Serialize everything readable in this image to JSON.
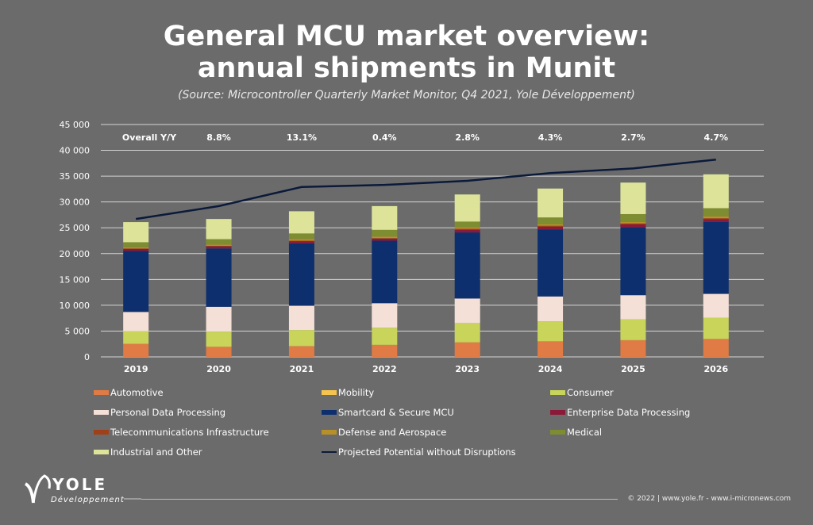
{
  "title_line1": "General MCU market overview:",
  "title_line2": "annual shipments in Munit",
  "subtitle": "(Source: Microcontroller Quarterly Market Monitor, Q4 2021, Yole Développement)",
  "footer": "© 2022 | www.yole.fr - www.i-micronews.com",
  "logo": {
    "name": "YOLE",
    "sub": "Développement"
  },
  "chart_data": {
    "type": "bar",
    "stacked": true,
    "title": "General MCU market overview: annual shipments in Munit",
    "xlabel": "",
    "ylabel": "",
    "ylim": [
      0,
      45000
    ],
    "yticks": [
      0,
      5000,
      10000,
      15000,
      20000,
      25000,
      30000,
      35000,
      40000,
      45000
    ],
    "ytick_labels": [
      "0",
      "5 000",
      "10 000",
      "15 000",
      "20 000",
      "25 000",
      "30 000",
      "35 000",
      "40 000",
      "45 000"
    ],
    "grid": true,
    "legend_position": "bottom",
    "categories": [
      "2019",
      "2020",
      "2021",
      "2022",
      "2023",
      "2024",
      "2025",
      "2026"
    ],
    "yoy_label": "Overall Y/Y",
    "yoy": [
      "8.8%",
      "13.1%",
      "0.4%",
      "2.8%",
      "4.3%",
      "2.7%",
      "4.7%"
    ],
    "series": [
      {
        "name": "Automotive",
        "color": "#E07B45",
        "values": [
          2500,
          1950,
          2050,
          2300,
          2800,
          3000,
          3200,
          3450
        ]
      },
      {
        "name": "Mobility",
        "color": "#F5C44E",
        "values": [
          50,
          50,
          50,
          50,
          50,
          50,
          50,
          50
        ]
      },
      {
        "name": "Consumer",
        "color": "#C8D45A",
        "values": [
          2450,
          2900,
          3100,
          3300,
          3700,
          3850,
          4050,
          4100
        ]
      },
      {
        "name": "Personal Data Processing",
        "color": "#F5E0D8",
        "values": [
          3700,
          4800,
          4700,
          4750,
          4750,
          4800,
          4650,
          4600
        ]
      },
      {
        "name": "Smartcard & Secure MCU",
        "color": "#0E2F6E",
        "values": [
          11800,
          11300,
          12100,
          12100,
          12800,
          13000,
          13150,
          13950
        ]
      },
      {
        "name": "Enterprise Data Processing",
        "color": "#8B1A3A",
        "values": [
          400,
          400,
          400,
          400,
          500,
          500,
          550,
          500
        ]
      },
      {
        "name": "Telecommunications Infrastructure",
        "color": "#A0401A",
        "values": [
          100,
          100,
          100,
          100,
          200,
          200,
          200,
          200
        ]
      },
      {
        "name": "Defense and Aerospace",
        "color": "#B8902A",
        "values": [
          200,
          250,
          300,
          300,
          250,
          300,
          300,
          350
        ]
      },
      {
        "name": "Medical",
        "color": "#7E8C32",
        "values": [
          1000,
          1050,
          1100,
          1300,
          1150,
          1300,
          1500,
          1600
        ]
      },
      {
        "name": "Industrial and Other",
        "color": "#DDE49A",
        "values": [
          3900,
          3900,
          4300,
          4600,
          5250,
          5600,
          6100,
          6550
        ]
      }
    ],
    "line": {
      "name": "Projected Potential without Disruptions",
      "color": "#0B1A3A",
      "values": [
        26700,
        29200,
        32900,
        33300,
        34100,
        35600,
        36500,
        38200
      ]
    },
    "legend_order": [
      "Automotive",
      "Mobility",
      "Consumer",
      "Personal Data Processing",
      "Smartcard & Secure MCU",
      "Enterprise Data Processing",
      "Telecommunications Infrastructure",
      "Defense and Aerospace",
      "Medical",
      "Industrial and Other",
      "Projected Potential without Disruptions"
    ]
  }
}
